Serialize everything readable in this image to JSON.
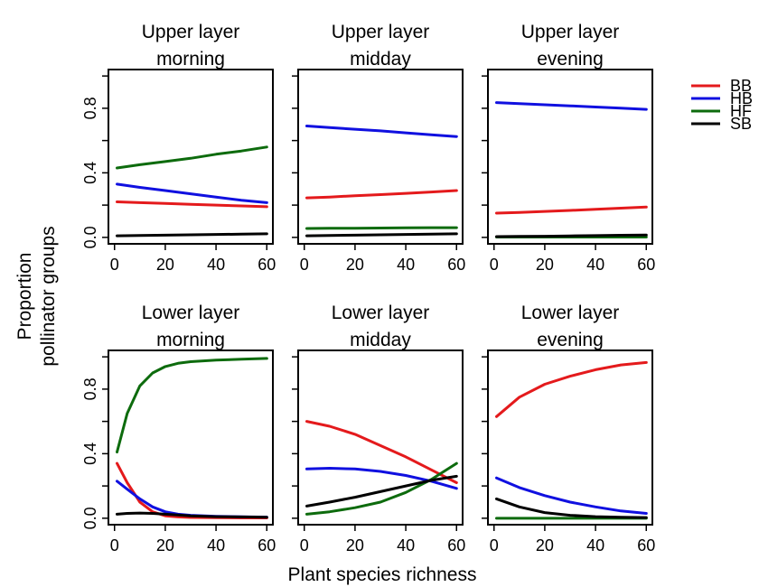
{
  "chart_data": {
    "type": "line",
    "ylabel": [
      "Proportion",
      "pollinator groups"
    ],
    "xlabel": "Plant species richness",
    "xlim": [
      0,
      60
    ],
    "ylim": [
      0,
      1
    ],
    "xticks": [
      0,
      20,
      40,
      60
    ],
    "yticks": [
      0.0,
      0.4,
      0.8
    ],
    "ytick_labels": [
      "0.0",
      "0.4",
      "0.8"
    ],
    "legend": {
      "placement": "top-right",
      "entries": [
        {
          "name": "BB",
          "color": "#e41a1c"
        },
        {
          "name": "HB",
          "color": "#1010e0"
        },
        {
          "name": "HF",
          "color": "#0d6b0d"
        },
        {
          "name": "SB",
          "color": "#000000"
        }
      ]
    },
    "panels": [
      {
        "title": [
          "Upper layer",
          "morning"
        ],
        "x": [
          1,
          10,
          20,
          30,
          40,
          50,
          60
        ],
        "series": [
          {
            "name": "BB",
            "values": [
              0.22,
              0.215,
              0.21,
              0.205,
              0.2,
              0.195,
              0.19
            ]
          },
          {
            "name": "HB",
            "values": [
              0.33,
              0.31,
              0.29,
              0.27,
              0.25,
              0.23,
              0.215
            ]
          },
          {
            "name": "HF",
            "values": [
              0.43,
              0.45,
              0.47,
              0.49,
              0.515,
              0.535,
              0.56
            ]
          },
          {
            "name": "SB",
            "values": [
              0.01,
              0.012,
              0.014,
              0.016,
              0.018,
              0.02,
              0.022
            ]
          }
        ]
      },
      {
        "title": [
          "Upper layer",
          "midday"
        ],
        "x": [
          1,
          10,
          20,
          30,
          40,
          50,
          60
        ],
        "series": [
          {
            "name": "BB",
            "values": [
              0.245,
              0.25,
              0.258,
              0.265,
              0.273,
              0.281,
              0.29
            ]
          },
          {
            "name": "HB",
            "values": [
              0.69,
              0.68,
              0.67,
              0.66,
              0.648,
              0.636,
              0.625
            ]
          },
          {
            "name": "HF",
            "values": [
              0.055,
              0.056,
              0.057,
              0.058,
              0.059,
              0.06,
              0.06
            ]
          },
          {
            "name": "SB",
            "values": [
              0.01,
              0.012,
              0.014,
              0.016,
              0.018,
              0.02,
              0.022
            ]
          }
        ]
      },
      {
        "title": [
          "Upper layer",
          "evening"
        ],
        "x": [
          1,
          10,
          20,
          30,
          40,
          50,
          60
        ],
        "series": [
          {
            "name": "BB",
            "values": [
              0.15,
              0.155,
              0.161,
              0.167,
              0.174,
              0.181,
              0.188
            ]
          },
          {
            "name": "HB",
            "values": [
              0.835,
              0.829,
              0.822,
              0.815,
              0.808,
              0.801,
              0.793
            ]
          },
          {
            "name": "HF",
            "values": [
              0.002,
              0.002,
              0.002,
              0.002,
              0.002,
              0.002,
              0.002
            ]
          },
          {
            "name": "SB",
            "values": [
              0.005,
              0.006,
              0.007,
              0.009,
              0.011,
              0.013,
              0.015
            ]
          }
        ]
      },
      {
        "title": [
          "Lower layer",
          "morning"
        ],
        "x": [
          1,
          5,
          10,
          15,
          20,
          25,
          30,
          40,
          50,
          60
        ],
        "series": [
          {
            "name": "BB",
            "values": [
              0.34,
              0.22,
              0.1,
              0.04,
              0.015,
              0.008,
              0.005,
              0.003,
              0.002,
              0.002
            ]
          },
          {
            "name": "HB",
            "values": [
              0.23,
              0.18,
              0.12,
              0.07,
              0.04,
              0.025,
              0.018,
              0.012,
              0.009,
              0.007
            ]
          },
          {
            "name": "HF",
            "values": [
              0.41,
              0.65,
              0.82,
              0.9,
              0.94,
              0.96,
              0.97,
              0.98,
              0.985,
              0.99
            ]
          },
          {
            "name": "SB",
            "values": [
              0.025,
              0.03,
              0.032,
              0.03,
              0.025,
              0.02,
              0.015,
              0.01,
              0.008,
              0.006
            ]
          }
        ]
      },
      {
        "title": [
          "Lower layer",
          "midday"
        ],
        "x": [
          1,
          10,
          20,
          30,
          40,
          50,
          60
        ],
        "series": [
          {
            "name": "BB",
            "values": [
              0.6,
              0.57,
              0.52,
              0.45,
              0.38,
              0.3,
              0.22
            ]
          },
          {
            "name": "HB",
            "values": [
              0.305,
              0.31,
              0.305,
              0.29,
              0.265,
              0.23,
              0.185
            ]
          },
          {
            "name": "HF",
            "values": [
              0.025,
              0.04,
              0.065,
              0.1,
              0.16,
              0.24,
              0.34
            ]
          },
          {
            "name": "SB",
            "values": [
              0.075,
              0.1,
              0.13,
              0.165,
              0.2,
              0.235,
              0.26
            ]
          }
        ]
      },
      {
        "title": [
          "Lower layer",
          "evening"
        ],
        "x": [
          1,
          10,
          20,
          30,
          40,
          50,
          60
        ],
        "series": [
          {
            "name": "BB",
            "values": [
              0.63,
              0.75,
              0.83,
              0.88,
              0.92,
              0.95,
              0.965
            ]
          },
          {
            "name": "HB",
            "values": [
              0.25,
              0.19,
              0.14,
              0.1,
              0.07,
              0.045,
              0.03
            ]
          },
          {
            "name": "HF",
            "values": [
              0.0,
              0.0,
              0.0,
              0.0,
              0.0,
              0.0,
              0.0
            ]
          },
          {
            "name": "SB",
            "values": [
              0.12,
              0.07,
              0.035,
              0.018,
              0.01,
              0.006,
              0.004
            ]
          }
        ]
      }
    ]
  }
}
